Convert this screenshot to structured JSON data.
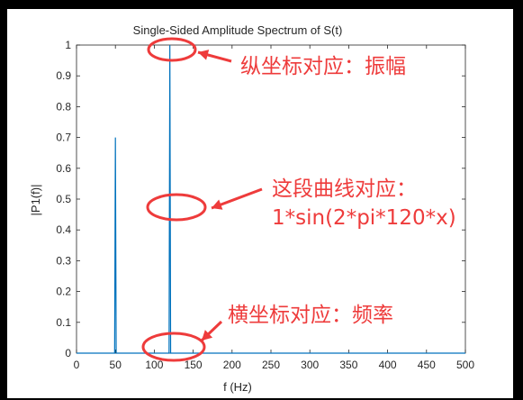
{
  "chart_data": {
    "type": "line",
    "title": "Single-Sided Amplitude Spectrum of S(t)",
    "xlabel": "f (Hz)",
    "ylabel": "|P1(f)|",
    "xlim": [
      0,
      500
    ],
    "ylim": [
      0,
      1
    ],
    "xticks": [
      0,
      50,
      100,
      150,
      200,
      250,
      300,
      350,
      400,
      450,
      500
    ],
    "yticks": [
      0,
      0.1,
      0.2,
      0.3,
      0.4,
      0.5,
      0.6,
      0.7,
      0.8,
      0.9,
      1
    ],
    "xtick_labels": [
      "0",
      "50",
      "100",
      "150",
      "200",
      "250",
      "300",
      "350",
      "400",
      "450",
      "500"
    ],
    "ytick_labels": [
      "0",
      "0.1",
      "0.2",
      "0.3",
      "0.4",
      "0.5",
      "0.6",
      "0.7",
      "0.8",
      "0.9",
      "1"
    ],
    "series": [
      {
        "color": "#0072bd",
        "x": [
          0,
          48,
          49,
          50,
          51,
          52,
          118,
          119,
          120,
          121,
          122,
          500
        ],
        "y": [
          0,
          0,
          0,
          0.7,
          0,
          0,
          0,
          0,
          1.0,
          0,
          0,
          0
        ]
      }
    ],
    "grid": false,
    "annotations": [
      {
        "text": "纵坐标对应：振幅",
        "color": "#ee3b3b",
        "x": 120,
        "y": 0.97
      },
      {
        "text": "这段曲线对应：",
        "color": "#ee3b3b",
        "x": 120,
        "y": 0.47
      },
      {
        "text": "1*sin(2*pi*120*x)",
        "color": "#ee3b3b",
        "x": 120,
        "y": 0.47
      },
      {
        "text": "横坐标对应：频率",
        "color": "#ee3b3b",
        "x": 120,
        "y": 0.02
      }
    ]
  }
}
